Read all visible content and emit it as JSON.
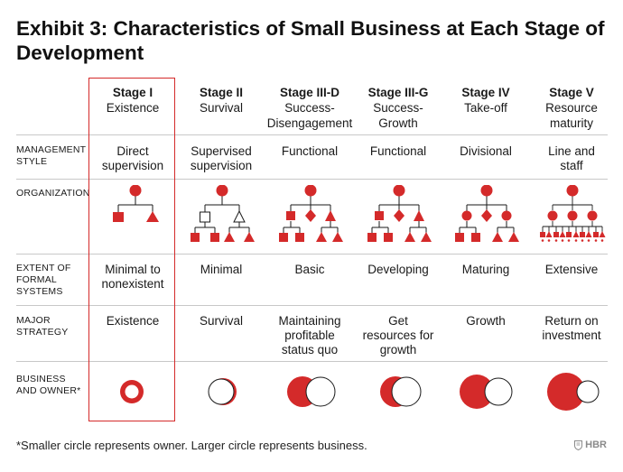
{
  "title": "Exhibit 3: Characteristics of Small Business at Each Stage of Development",
  "colors": {
    "accent": "#d42a2a",
    "rule": "#c8c8c8",
    "text": "#1a1a1a"
  },
  "stages": [
    {
      "stage": "Stage I",
      "name": "Existence",
      "management": "Direct supervision",
      "systems": "Minimal to nonexistent",
      "strategy": "Existence"
    },
    {
      "stage": "Stage II",
      "name": "Survival",
      "management": "Supervised supervision",
      "systems": "Minimal",
      "strategy": "Survival"
    },
    {
      "stage": "Stage III-D",
      "name": "Success-Disengagement",
      "management": "Functional",
      "systems": "Basic",
      "strategy": "Maintaining profitable status quo"
    },
    {
      "stage": "Stage III-G",
      "name": "Success-Growth",
      "management": "Functional",
      "systems": "Developing",
      "strategy": "Get resources for growth"
    },
    {
      "stage": "Stage IV",
      "name": "Take-off",
      "management": "Divisional",
      "systems": "Maturing",
      "strategy": "Growth"
    },
    {
      "stage": "Stage V",
      "name": "Resource maturity",
      "management": "Line and staff",
      "systems": "Extensive",
      "strategy": "Return on investment"
    }
  ],
  "row_labels": {
    "management": "MANAGEMENT STYLE",
    "organization": "ORGANIZATION",
    "systems": "EXTENT OF FORMAL SYSTEMS",
    "strategy": "MAJOR STRATEGY",
    "owner": "BUSINESS AND OWNER*"
  },
  "footnote": "*Smaller circle represents owner. Larger circle represents business.",
  "brand": "HBR",
  "icons": {
    "brand": "shield-icon"
  }
}
